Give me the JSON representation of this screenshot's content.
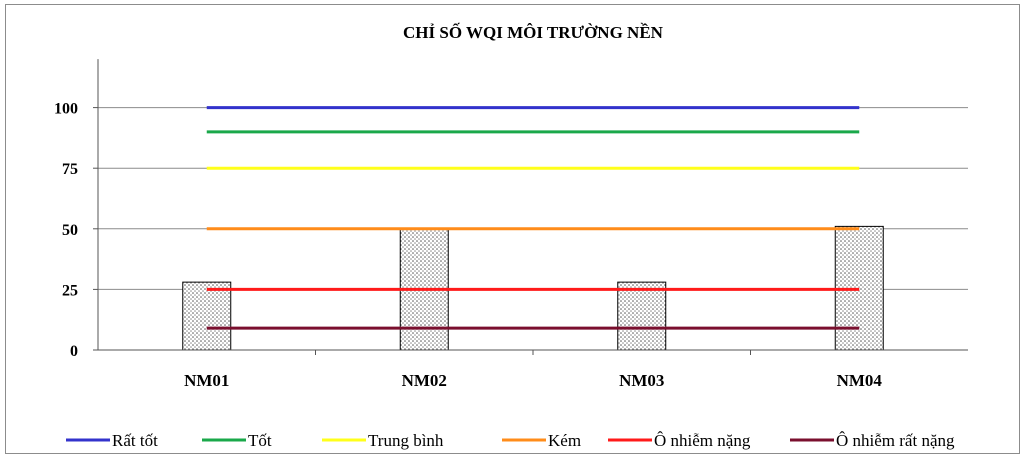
{
  "chart_data": {
    "type": "bar",
    "title": "CHỈ SỐ WQI MÔI TRƯỜNG NỀN",
    "xlabel": "",
    "ylabel": "",
    "categories": [
      "NM01",
      "NM02",
      "NM03",
      "NM04"
    ],
    "values": [
      28,
      50,
      28,
      51
    ],
    "ylim": [
      0,
      120
    ],
    "yticks": [
      0,
      25,
      50,
      75,
      100
    ],
    "grid": true,
    "bar_style": "dotted pattern with black outline",
    "reference_lines": [
      {
        "name": "Rất tốt",
        "value": 100,
        "color": "#3333cc"
      },
      {
        "name": "Tốt",
        "value": 90,
        "color": "#1aa84a"
      },
      {
        "name": "Trung bình",
        "value": 75,
        "color": "#ffff1a"
      },
      {
        "name": "Kém",
        "value": 50,
        "color": "#ff8c1a"
      },
      {
        "name": "Ô nhiễm nặng",
        "value": 25,
        "color": "#ff1a1a"
      },
      {
        "name": "Ô nhiễm rất nặng",
        "value": 9,
        "color": "#7a0f2e"
      }
    ],
    "legend_position": "bottom"
  }
}
